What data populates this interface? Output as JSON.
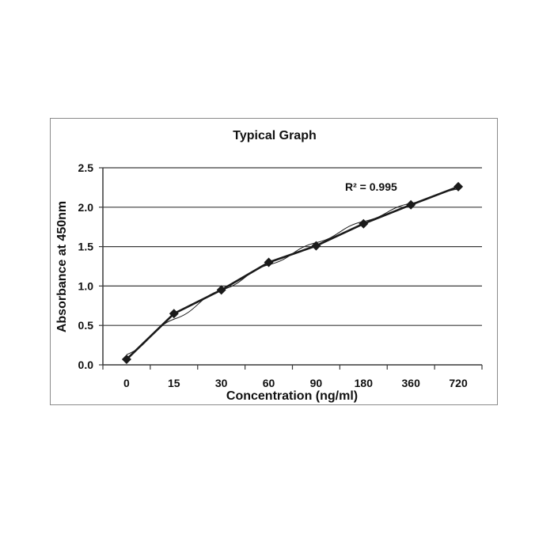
{
  "chart_data": {
    "type": "line",
    "title": "Typical Graph",
    "xlabel": "Concentration (ng/ml)",
    "ylabel": "Absorbance at 450nm",
    "categories": [
      "0",
      "15",
      "30",
      "60",
      "90",
      "180",
      "360",
      "720"
    ],
    "series": [
      {
        "values": [
          0.07,
          0.65,
          0.95,
          1.3,
          1.51,
          1.79,
          2.03,
          2.26
        ],
        "color": "#1a1a1a",
        "marker": "diamond"
      }
    ],
    "trendline": {
      "values": [
        0.13,
        0.58,
        0.95,
        1.27,
        1.55,
        1.82,
        2.05,
        2.23
      ],
      "color": "#1a1a1a"
    },
    "yticks": [
      "0.0",
      "0.5",
      "1.0",
      "1.5",
      "2.0",
      "2.5"
    ],
    "ylim": [
      0,
      2.5
    ],
    "grid": true,
    "annotation": "R² = 0.995"
  }
}
